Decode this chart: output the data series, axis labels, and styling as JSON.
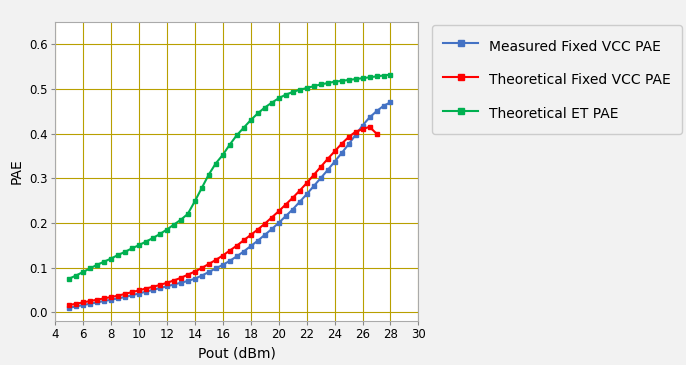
{
  "xlim": [
    4,
    30
  ],
  "ylim": [
    -0.02,
    0.65
  ],
  "xticks": [
    4,
    6,
    8,
    10,
    12,
    14,
    16,
    18,
    20,
    22,
    24,
    26,
    28,
    30
  ],
  "yticks": [
    0.0,
    0.1,
    0.2,
    0.3,
    0.4,
    0.5,
    0.6
  ],
  "xlabel": "Pout (dBm)",
  "ylabel": "PAE",
  "bg_color": "#f2f2f2",
  "plot_bg_color": "#ffffff",
  "grid_color": "#b8a000",
  "measured_fixed_vcc": {
    "label": "Measured Fixed VCC PAE",
    "color": "#4472c4",
    "x": [
      5,
      5.5,
      6,
      6.5,
      7,
      7.5,
      8,
      8.5,
      9,
      9.5,
      10,
      10.5,
      11,
      11.5,
      12,
      12.5,
      13,
      13.5,
      14,
      14.5,
      15,
      15.5,
      16,
      16.5,
      17,
      17.5,
      18,
      18.5,
      19,
      19.5,
      20,
      20.5,
      21,
      21.5,
      22,
      22.5,
      23,
      23.5,
      24,
      24.5,
      25,
      25.5,
      26,
      26.5,
      27,
      27.5,
      28
    ],
    "y": [
      0.01,
      0.013,
      0.016,
      0.019,
      0.022,
      0.025,
      0.028,
      0.031,
      0.034,
      0.038,
      0.042,
      0.046,
      0.05,
      0.054,
      0.058,
      0.062,
      0.066,
      0.07,
      0.075,
      0.082,
      0.09,
      0.098,
      0.106,
      0.115,
      0.125,
      0.136,
      0.148,
      0.16,
      0.173,
      0.186,
      0.2,
      0.215,
      0.23,
      0.247,
      0.264,
      0.282,
      0.3,
      0.318,
      0.337,
      0.356,
      0.376,
      0.397,
      0.418,
      0.436,
      0.45,
      0.462,
      0.47
    ]
  },
  "theoretical_fixed_vcc": {
    "label": "Theoretical Fixed VCC PAE",
    "color": "#ff0000",
    "x": [
      5,
      5.5,
      6,
      6.5,
      7,
      7.5,
      8,
      8.5,
      9,
      9.5,
      10,
      10.5,
      11,
      11.5,
      12,
      12.5,
      13,
      13.5,
      14,
      14.5,
      15,
      15.5,
      16,
      16.5,
      17,
      17.5,
      18,
      18.5,
      19,
      19.5,
      20,
      20.5,
      21,
      21.5,
      22,
      22.5,
      23,
      23.5,
      24,
      24.5,
      25,
      25.5,
      26,
      26.5,
      27
    ],
    "y": [
      0.016,
      0.019,
      0.022,
      0.025,
      0.028,
      0.031,
      0.034,
      0.037,
      0.041,
      0.045,
      0.049,
      0.053,
      0.057,
      0.061,
      0.066,
      0.071,
      0.077,
      0.084,
      0.091,
      0.099,
      0.108,
      0.117,
      0.127,
      0.138,
      0.149,
      0.161,
      0.173,
      0.185,
      0.198,
      0.212,
      0.226,
      0.241,
      0.256,
      0.272,
      0.289,
      0.307,
      0.325,
      0.343,
      0.36,
      0.377,
      0.392,
      0.404,
      0.41,
      0.415,
      0.4
    ]
  },
  "theoretical_et": {
    "label": "Theoretical ET PAE",
    "color": "#00b050",
    "x": [
      5,
      5.5,
      6,
      6.5,
      7,
      7.5,
      8,
      8.5,
      9,
      9.5,
      10,
      10.5,
      11,
      11.5,
      12,
      12.5,
      13,
      13.5,
      14,
      14.5,
      15,
      15.5,
      16,
      16.5,
      17,
      17.5,
      18,
      18.5,
      19,
      19.5,
      20,
      20.5,
      21,
      21.5,
      22,
      22.5,
      23,
      23.5,
      24,
      24.5,
      25,
      25.5,
      26,
      26.5,
      27,
      27.5,
      28
    ],
    "y": [
      0.075,
      0.082,
      0.09,
      0.098,
      0.106,
      0.113,
      0.12,
      0.128,
      0.135,
      0.143,
      0.15,
      0.158,
      0.166,
      0.175,
      0.185,
      0.196,
      0.207,
      0.22,
      0.248,
      0.278,
      0.308,
      0.333,
      0.352,
      0.375,
      0.396,
      0.413,
      0.43,
      0.445,
      0.458,
      0.469,
      0.479,
      0.487,
      0.493,
      0.498,
      0.502,
      0.506,
      0.51,
      0.513,
      0.516,
      0.518,
      0.52,
      0.522,
      0.524,
      0.526,
      0.528,
      0.53,
      0.532
    ]
  }
}
